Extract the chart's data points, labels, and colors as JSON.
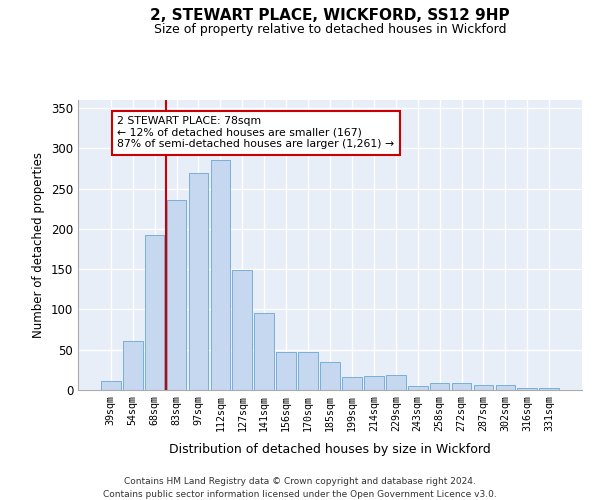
{
  "title": "2, STEWART PLACE, WICKFORD, SS12 9HP",
  "subtitle": "Size of property relative to detached houses in Wickford",
  "xlabel": "Distribution of detached houses by size in Wickford",
  "ylabel": "Number of detached properties",
  "categories": [
    "39sqm",
    "54sqm",
    "68sqm",
    "83sqm",
    "97sqm",
    "112sqm",
    "127sqm",
    "141sqm",
    "156sqm",
    "170sqm",
    "185sqm",
    "199sqm",
    "214sqm",
    "229sqm",
    "243sqm",
    "258sqm",
    "272sqm",
    "287sqm",
    "302sqm",
    "316sqm",
    "331sqm"
  ],
  "values": [
    11,
    61,
    192,
    236,
    270,
    285,
    149,
    95,
    47,
    47,
    35,
    16,
    18,
    19,
    5,
    9,
    9,
    6,
    6,
    2,
    2
  ],
  "bar_color": "#c5d8f0",
  "bar_edge_color": "#7aaed6",
  "vline_color": "#cc0000",
  "vline_pos": 2.5,
  "annotation_text": "2 STEWART PLACE: 78sqm\n← 12% of detached houses are smaller (167)\n87% of semi-detached houses are larger (1,261) →",
  "annotation_box_color": "#cc0000",
  "ylim": [
    0,
    360
  ],
  "yticks": [
    0,
    50,
    100,
    150,
    200,
    250,
    300,
    350
  ],
  "background_color": "#e8eef8",
  "footer_line1": "Contains HM Land Registry data © Crown copyright and database right 2024.",
  "footer_line2": "Contains public sector information licensed under the Open Government Licence v3.0."
}
